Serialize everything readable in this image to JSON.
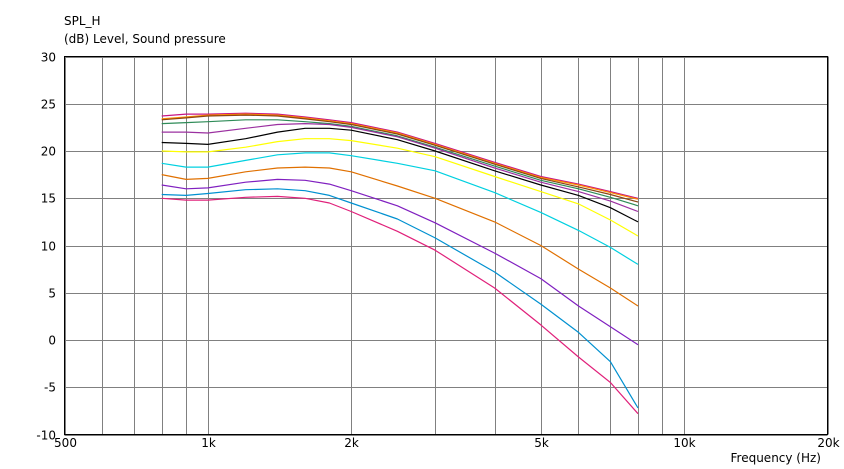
{
  "chart_data": {
    "type": "line",
    "title": "SPL_H",
    "subtitle": "(dB)  Level, Sound pressure",
    "xlabel": "Frequency  (Hz)",
    "ylabel": "",
    "x_scale": "log",
    "xlim": [
      500,
      20000
    ],
    "ylim": [
      -10,
      30
    ],
    "grid": true,
    "legend": "none",
    "x_ticks": [
      {
        "value": 500,
        "label": "500"
      },
      {
        "value": 1000,
        "label": "1k"
      },
      {
        "value": 2000,
        "label": "2k"
      },
      {
        "value": 5000,
        "label": "5k"
      },
      {
        "value": 10000,
        "label": "10k"
      },
      {
        "value": 20000,
        "label": "20k"
      }
    ],
    "x_minor_grid": [
      600,
      700,
      800,
      900,
      3000,
      4000,
      6000,
      7000,
      8000,
      9000
    ],
    "y_ticks": [
      {
        "value": 30,
        "label": "30"
      },
      {
        "value": 25,
        "label": "25"
      },
      {
        "value": 20,
        "label": "20"
      },
      {
        "value": 15,
        "label": "15"
      },
      {
        "value": 10,
        "label": "10"
      },
      {
        "value": 5,
        "label": "5"
      },
      {
        "value": 0,
        "label": "0"
      },
      {
        "value": -5,
        "label": "-5"
      },
      {
        "value": -10,
        "label": "-10"
      }
    ],
    "x": [
      800,
      900,
      1000,
      1200,
      1400,
      1600,
      1800,
      2000,
      2500,
      3000,
      4000,
      5000,
      6000,
      7000,
      8000
    ],
    "series": [
      {
        "color": "#c71585",
        "values": [
          23.7,
          23.9,
          23.9,
          24.0,
          23.9,
          23.6,
          23.3,
          23.0,
          22.0,
          20.8,
          18.8,
          17.3,
          16.5,
          15.7,
          15.0
        ]
      },
      {
        "color": "#ff8c00",
        "values": [
          23.4,
          23.6,
          23.8,
          23.9,
          23.8,
          23.5,
          23.2,
          22.9,
          21.9,
          20.7,
          18.7,
          17.2,
          16.4,
          15.6,
          14.9
        ]
      },
      {
        "color": "#8b4513",
        "values": [
          23.3,
          23.5,
          23.7,
          23.8,
          23.7,
          23.4,
          23.1,
          22.8,
          21.8,
          20.6,
          18.6,
          17.1,
          16.2,
          15.4,
          14.6
        ]
      },
      {
        "color": "#2e8b57",
        "values": [
          22.9,
          23.0,
          23.1,
          23.3,
          23.3,
          23.1,
          22.9,
          22.6,
          21.6,
          20.4,
          18.4,
          16.9,
          16.0,
          15.1,
          14.2
        ]
      },
      {
        "color": "#9b30a0",
        "values": [
          22.0,
          22.0,
          21.9,
          22.4,
          22.8,
          22.9,
          22.8,
          22.5,
          21.5,
          20.3,
          18.2,
          16.7,
          15.7,
          14.7,
          13.6
        ]
      },
      {
        "color": "#000000",
        "values": [
          20.9,
          20.8,
          20.7,
          21.3,
          22.0,
          22.4,
          22.4,
          22.2,
          21.2,
          20.0,
          17.9,
          16.4,
          15.3,
          14.0,
          12.5
        ]
      },
      {
        "color": "#ffff00",
        "values": [
          20.0,
          19.9,
          19.9,
          20.4,
          21.0,
          21.3,
          21.3,
          21.1,
          20.3,
          19.4,
          17.3,
          15.7,
          14.4,
          12.7,
          11.0
        ]
      },
      {
        "color": "#00d0e0",
        "values": [
          18.7,
          18.3,
          18.3,
          19.0,
          19.6,
          19.8,
          19.8,
          19.5,
          18.7,
          17.9,
          15.6,
          13.5,
          11.6,
          9.8,
          8.0
        ]
      },
      {
        "color": "#e07000",
        "values": [
          17.5,
          17.0,
          17.1,
          17.8,
          18.2,
          18.3,
          18.2,
          17.8,
          16.3,
          15.0,
          12.5,
          10.0,
          7.5,
          5.5,
          3.6
        ]
      },
      {
        "color": "#8020c0",
        "values": [
          16.4,
          16.0,
          16.1,
          16.7,
          17.0,
          16.9,
          16.5,
          15.8,
          14.2,
          12.4,
          9.2,
          6.5,
          3.6,
          1.4,
          -0.5
        ]
      },
      {
        "color": "#0090d0",
        "values": [
          15.4,
          15.3,
          15.5,
          15.9,
          16.0,
          15.8,
          15.3,
          14.5,
          12.8,
          10.8,
          7.2,
          3.8,
          0.8,
          -2.3,
          -7.2
        ]
      },
      {
        "color": "#e0207a",
        "values": [
          15.0,
          14.8,
          14.8,
          15.1,
          15.2,
          15.0,
          14.5,
          13.6,
          11.5,
          9.5,
          5.5,
          1.6,
          -1.8,
          -4.5,
          -7.8
        ]
      }
    ]
  }
}
